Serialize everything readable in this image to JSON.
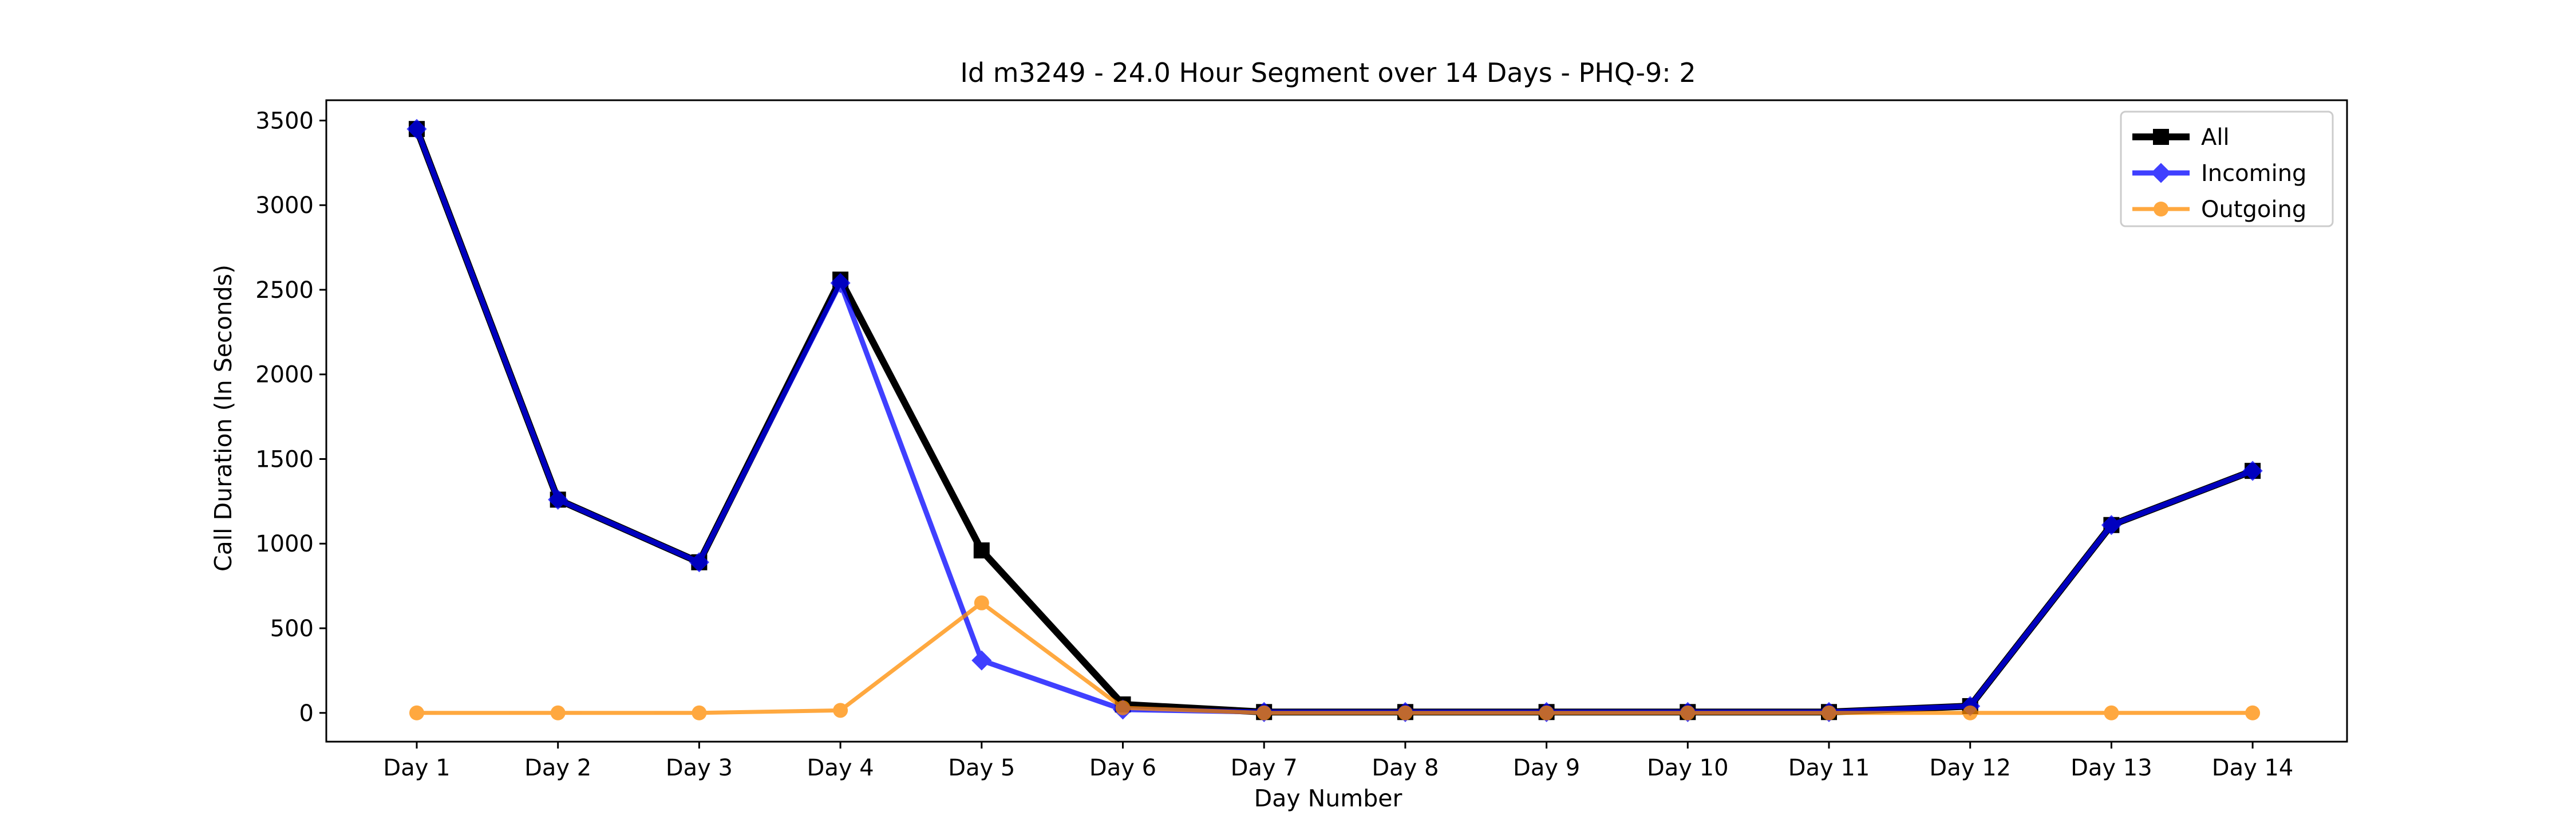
{
  "chart_data": {
    "type": "line",
    "title": "Id m3249 - 24.0 Hour Segment over 14 Days - PHQ-9: 2",
    "xlabel": "Day Number",
    "ylabel": "Call Duration (In Seconds)",
    "categories": [
      "Day 1",
      "Day 2",
      "Day 3",
      "Day 4",
      "Day 5",
      "Day 6",
      "Day 7",
      "Day 8",
      "Day 9",
      "Day 10",
      "Day 11",
      "Day 12",
      "Day 13",
      "Day 14"
    ],
    "ylim": [
      -170,
      3620
    ],
    "yticks": [
      0,
      500,
      1000,
      1500,
      2000,
      2500,
      3000,
      3500
    ],
    "grid": false,
    "legend_position": "top-right",
    "series": [
      {
        "name": "All",
        "color": "#000000",
        "marker": "square",
        "values": [
          3450,
          1260,
          890,
          2560,
          960,
          50,
          5,
          5,
          5,
          5,
          5,
          40,
          1110,
          1430
        ]
      },
      {
        "name": "Incoming",
        "color": "#0000ff",
        "marker": "diamond",
        "values": [
          3450,
          1260,
          890,
          2540,
          310,
          20,
          5,
          5,
          5,
          5,
          5,
          40,
          1110,
          1430
        ]
      },
      {
        "name": "Outgoing",
        "color": "#ff8c00",
        "marker": "circle",
        "values": [
          0,
          0,
          0,
          15,
          650,
          30,
          0,
          0,
          0,
          0,
          0,
          0,
          0,
          0
        ]
      }
    ]
  }
}
